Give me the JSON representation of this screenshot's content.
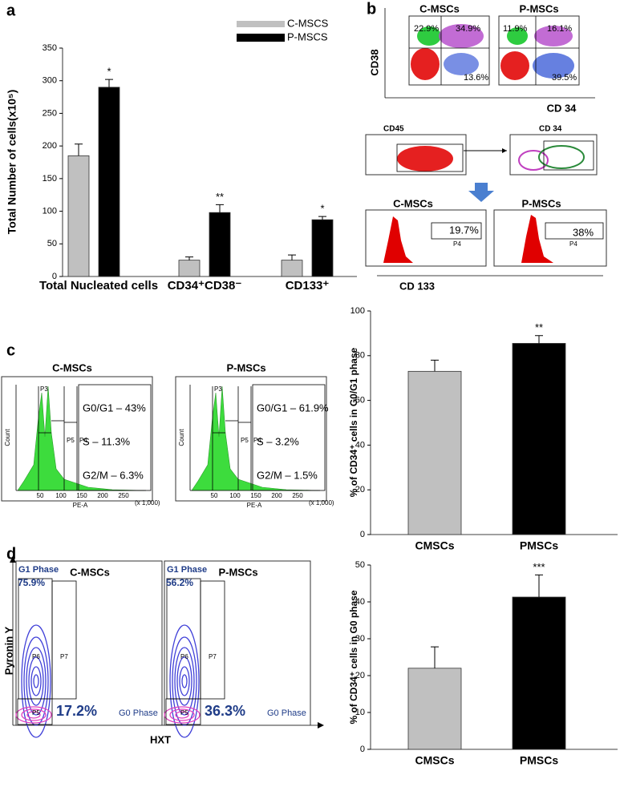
{
  "panel_a": {
    "label": "a"
  },
  "panel_b": {
    "label": "b",
    "y_axis": "CD38",
    "x_axis": "CD 34",
    "plots": [
      {
        "title": "C-MSCs",
        "quadrants": [
          "22.9%",
          "34.9%",
          "13.6%"
        ]
      },
      {
        "title": "P-MSCs",
        "quadrants": [
          "11.9%",
          "16.1%",
          "39.5%"
        ]
      }
    ],
    "gates": [
      "CD45",
      "CD 34"
    ],
    "histograms": [
      {
        "title": "C-MSCs",
        "percent": "19.7%",
        "gate": "P4"
      },
      {
        "title": "P-MSCs",
        "percent": "38%",
        "gate": "P4"
      }
    ],
    "hist_axis": "CD 133"
  },
  "panel_c": {
    "label": "c",
    "y_axis": "Count",
    "x_axis": "PE-A",
    "x_ticks": [
      "50",
      "100",
      "150",
      "200",
      "250"
    ],
    "x_unit": "(x 1,000)",
    "gates": [
      "P3",
      "P5",
      "P4"
    ],
    "plots": [
      {
        "title": "C-MSCs",
        "phases": [
          "G0/G1 – 43%",
          "S – 11.3%",
          "G2/M – 6.3%"
        ]
      },
      {
        "title": "P-MSCs",
        "phases": [
          "G0/G1 – 61.9%",
          "S – 3.2%",
          "G2/M – 1.5%"
        ]
      }
    ]
  },
  "panel_d": {
    "label": "d",
    "y_axis": "Pyronin Y",
    "x_axis": "HXT",
    "gates": [
      "P6",
      "P7",
      "P5"
    ],
    "plots": [
      {
        "title": "C-MSCs",
        "g1_label": "G1 Phase",
        "g1": "75.9%",
        "g0": "17.2%",
        "g0_label": "G0 Phase"
      },
      {
        "title": "P-MSCs",
        "g1_label": "G1 Phase",
        "g1": "56.2%",
        "g0": "36.3%",
        "g0_label": "G0 Phase"
      }
    ]
  },
  "chart_data": [
    {
      "type": "bar",
      "ylabel": "Total Number of cells(x10⁵)",
      "categories": [
        "Total Nucleated cells",
        "CD34⁺CD38⁻",
        "CD133⁺"
      ],
      "series": [
        {
          "name": "C-MSCS",
          "color": "#c0c0c0",
          "values": [
            185,
            25,
            25
          ],
          "errors": [
            18,
            5,
            8
          ]
        },
        {
          "name": "P-MSCS",
          "color": "#000000",
          "values": [
            290,
            98,
            87
          ],
          "errors": [
            12,
            12,
            5
          ],
          "annotations": [
            "*",
            "**",
            "*"
          ]
        }
      ],
      "ylim": [
        0,
        350
      ],
      "yticks": [
        0,
        50,
        100,
        150,
        200,
        250,
        300,
        350
      ]
    },
    {
      "type": "bar",
      "ylabel": "% of CD34⁺ cells in G0/G1 phase",
      "categories": [
        "CMSCs",
        "PMSCs"
      ],
      "colors": [
        "#c0c0c0",
        "#000000"
      ],
      "values": [
        73,
        85.5
      ],
      "errors": [
        5,
        3.5
      ],
      "annotations": [
        null,
        "**"
      ],
      "ylim": [
        0,
        100
      ],
      "yticks": [
        0,
        20,
        40,
        60,
        80,
        100
      ]
    },
    {
      "type": "bar",
      "ylabel": "% of CD34⁺ cells in G0 phase",
      "categories": [
        "CMSCs",
        "PMSCs"
      ],
      "colors": [
        "#c0c0c0",
        "#000000"
      ],
      "values": [
        22,
        41.3
      ],
      "errors": [
        5.8,
        6
      ],
      "annotations": [
        null,
        "***"
      ],
      "ylim": [
        0,
        50
      ],
      "yticks": [
        0,
        10,
        20,
        30,
        40,
        50
      ]
    }
  ]
}
